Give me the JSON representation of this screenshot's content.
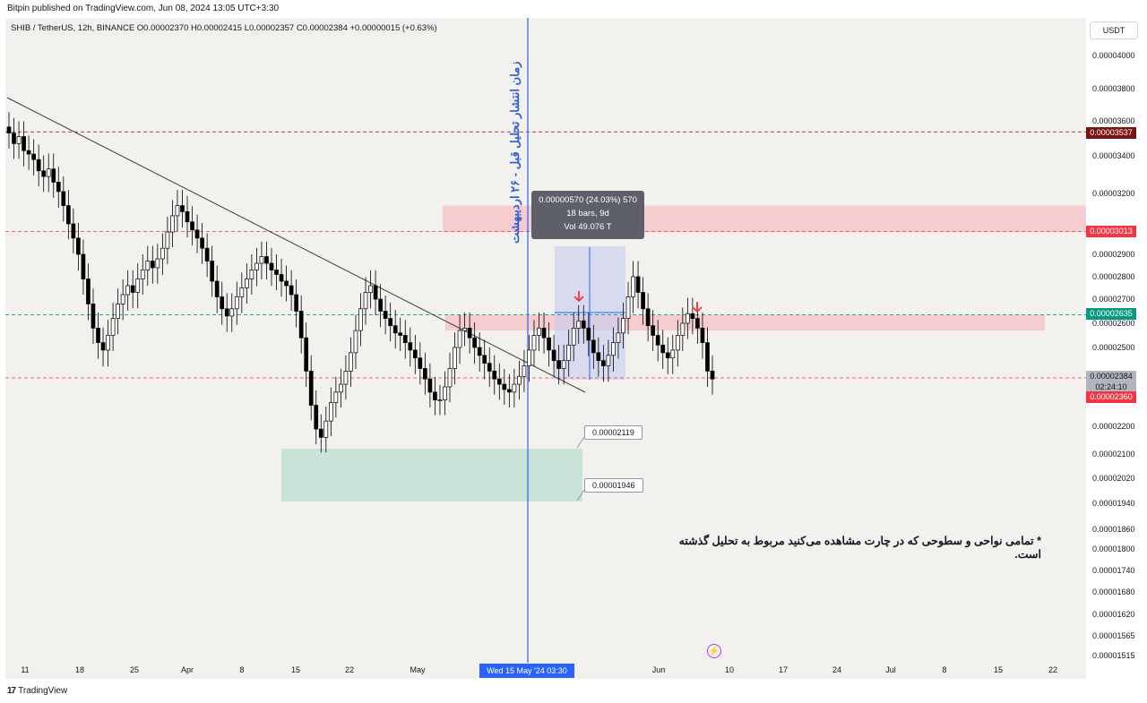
{
  "header": {
    "published": "Bitpin published on TradingView.com, Jun 08, 2024 13:05 UTC+3:30",
    "legend": "SHIB / TetherUS, 12h, BINANCE  O0.00002370  H0.00002415  L0.00002357  C0.00002384  +0.00000015 (+0.63%)"
  },
  "price_scale": {
    "unit": "USDT"
  },
  "footer": {
    "logo": "17",
    "brand": "TradingView"
  },
  "annotations": {
    "vertical_label": "زمان انتشار تحلیل قبل - ۲۶ اردیبهشت",
    "note": "* تمامی نواحی و سطوحی که در چارت مشاهده می‌کنید مربوط به تحلیل گذشته است.",
    "measure_line1": "0.00000570 (24.03%) 570",
    "measure_line2": "18 bars, 9d",
    "measure_line3": "Vol 49.076 T",
    "callout_upper": "0.00002119",
    "callout_lower": "0.00001946"
  },
  "badges": {
    "level_top": "0.00003537",
    "level_mid": "0.00003013",
    "level_green": "0.00002635",
    "last_price": "0.00002384",
    "countdown": "02:24:10",
    "level_low": "0.00002360"
  },
  "crosshair_date": "Wed 15 May '24   03:30",
  "colors": {
    "up_candle": "#ffffff",
    "down_candle": "#000000",
    "red_zone": "#f4c7c9",
    "green_zone": "#bfe0d4",
    "vline": "#2962ff",
    "badge_red": "#f23645",
    "badge_dark": "#7b1313",
    "badge_green": "#089981",
    "badge_grey": "#b2b5be"
  },
  "chart_data": {
    "type": "candlestick",
    "symbol": "SHIB / TetherUS",
    "interval": "12h",
    "x_ticks": [
      "11",
      "18",
      "25",
      "Apr",
      "8",
      "15",
      "22",
      "May",
      "Wed 15 May '24   03:30",
      "Jun",
      "10",
      "17",
      "24",
      "Jul",
      "8",
      "15",
      "22"
    ],
    "y_ticks": [
      "0.00004000",
      "0.00003800",
      "0.00003600",
      "0.00003400",
      "0.00003200",
      "0.00002900",
      "0.00002800",
      "0.00002700",
      "0.00002600",
      "0.00002500",
      "0.00002200",
      "0.00002100",
      "0.00002020",
      "0.00001940",
      "0.00001860",
      "0.00001800",
      "0.00001740",
      "0.00001680",
      "0.00001620",
      "0.00001565",
      "0.00001515"
    ],
    "y_range": [
      1.515e-05,
      4.05e-05
    ],
    "zones": [
      {
        "kind": "resistance",
        "from": 3.01e-05,
        "to": 3.14e-05
      },
      {
        "kind": "resistance",
        "from": 2.57e-05,
        "to": 2.635e-05
      },
      {
        "kind": "support",
        "from": 1.946e-05,
        "to": 2.119e-05
      }
    ],
    "levels": [
      3.537e-05,
      3.013e-05,
      2.635e-05,
      2.384e-05
    ],
    "measure": {
      "change": 5.7e-06,
      "percent": 24.03,
      "bars": 18,
      "days": 9
    },
    "candles_close_path": [
      3.53e-05,
      3.47e-05,
      3.51e-05,
      3.43e-05,
      3.41e-05,
      3.38e-05,
      3.32e-05,
      3.29e-05,
      3.33e-05,
      3.26e-05,
      3.21e-05,
      3.14e-05,
      3.05e-05,
      2.98e-05,
      2.9e-05,
      2.79e-05,
      2.68e-05,
      2.58e-05,
      2.52e-05,
      2.49e-05,
      2.55e-05,
      2.62e-05,
      2.68e-05,
      2.72e-05,
      2.76e-05,
      2.73e-05,
      2.79e-05,
      2.83e-05,
      2.87e-05,
      2.84e-05,
      2.88e-05,
      2.93e-05,
      3.01e-05,
      3.09e-05,
      3.14e-05,
      3.11e-05,
      3.06e-05,
      3.02e-05,
      2.98e-05,
      2.93e-05,
      2.87e-05,
      2.78e-05,
      2.71e-05,
      2.66e-05,
      2.63e-05,
      2.66e-05,
      2.71e-05,
      2.75e-05,
      2.79e-05,
      2.83e-05,
      2.86e-05,
      2.89e-05,
      2.86e-05,
      2.83e-05,
      2.81e-05,
      2.78e-05,
      2.76e-05,
      2.72e-05,
      2.65e-05,
      2.54e-05,
      2.41e-05,
      2.28e-05,
      2.19e-05,
      2.16e-05,
      2.22e-05,
      2.29e-05,
      2.33e-05,
      2.36e-05,
      2.41e-05,
      2.48e-05,
      2.57e-05,
      2.66e-05,
      2.73e-05,
      2.76e-05,
      2.7e-05,
      2.65e-05,
      2.62e-05,
      2.59e-05,
      2.56e-05,
      2.55e-05,
      2.52e-05,
      2.49e-05,
      2.46e-05,
      2.42e-05,
      2.38e-05,
      2.33e-05,
      2.3e-05,
      2.3e-05,
      2.35e-05,
      2.42e-05,
      2.5e-05,
      2.57e-05,
      2.58e-05,
      2.54e-05,
      2.5e-05,
      2.47e-05,
      2.44e-05,
      2.41e-05,
      2.38e-05,
      2.36e-05,
      2.34e-05,
      2.33e-05,
      2.36e-05,
      2.39e-05,
      2.43e-05,
      2.49e-05,
      2.55e-05,
      2.58e-05,
      2.54e-05,
      2.49e-05,
      2.45e-05,
      2.42e-05,
      2.45e-05,
      2.51e-05,
      2.58e-05,
      2.61e-05,
      2.58e-05,
      2.53e-05,
      2.48e-05,
      2.45e-05,
      2.43e-05,
      2.47e-05,
      2.52e-05,
      2.56e-05,
      2.62e-05,
      2.71e-05,
      2.8e-05,
      2.73e-05,
      2.66e-05,
      2.59e-05,
      2.55e-05,
      2.51e-05,
      2.48e-05,
      2.46e-05,
      2.49e-05,
      2.55e-05,
      2.6e-05,
      2.64e-05,
      2.62e-05,
      2.58e-05,
      2.52e-05,
      2.41e-05,
      2.38e-05
    ]
  }
}
